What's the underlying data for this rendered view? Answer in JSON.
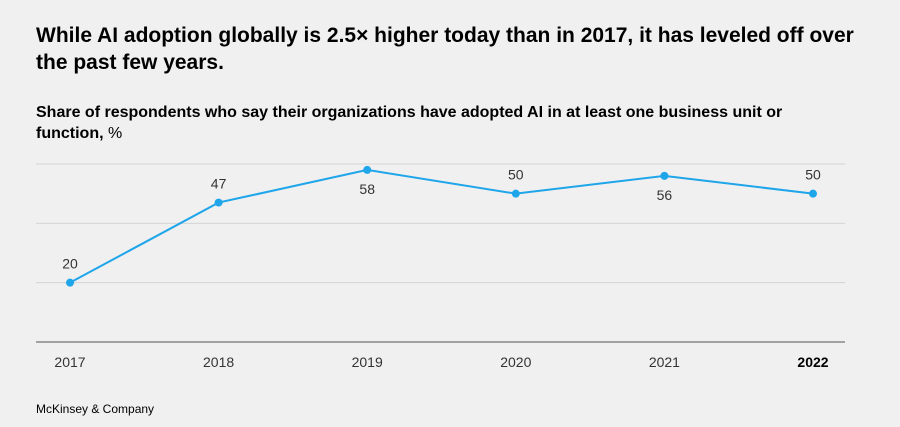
{
  "title": "While AI adoption globally is 2.5× higher today than in 2017, it has leveled off over the past few years.",
  "subtitle": "Share of respondents who say their organizations have adopted AI in at least one business unit or function,",
  "subtitle_unit": "%",
  "source": "McKinsey & Company",
  "colors": {
    "line": "#1ea5ea",
    "grid": "#d4d4d4",
    "axis": "#555555",
    "label": "#333333",
    "background": "#f0f0f0"
  },
  "chart_data": {
    "type": "line",
    "x": [
      "2017",
      "2018",
      "2019",
      "2020",
      "2021",
      "2022"
    ],
    "series": [
      {
        "values": [
          20,
          47,
          58,
          50,
          56,
          50
        ]
      }
    ],
    "highlighted_category": "2022",
    "ylim": [
      0,
      60
    ],
    "grid": true,
    "label_positions": [
      "above",
      "above",
      "below",
      "above",
      "below",
      "above"
    ]
  }
}
